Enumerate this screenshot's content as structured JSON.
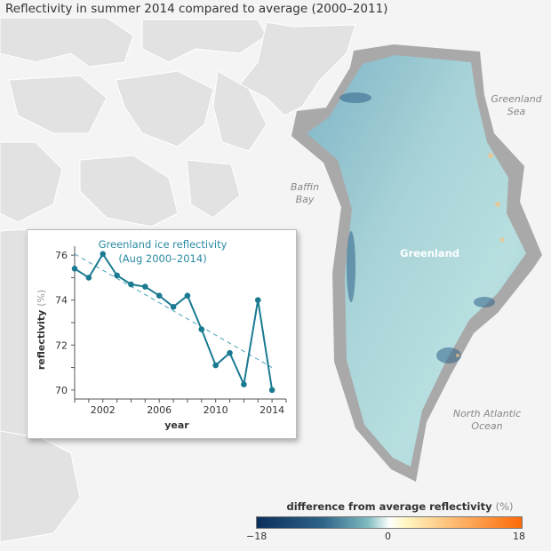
{
  "title": "Reflectivity in summer 2014 compared to average (2000–2011)",
  "map_labels": {
    "baffin_bay": [
      "Baffin",
      "Bay"
    ],
    "greenland_sea": [
      "Greenland",
      "Sea"
    ],
    "greenland": "Greenland",
    "north_atlantic": [
      "North Atlantic",
      "Ocean"
    ]
  },
  "legend": {
    "title": "difference from average reflectivity",
    "unit": "(%)",
    "min_label": "−18",
    "mid_label": "0",
    "max_label": "18",
    "colors": {
      "low": "#0b2f5c",
      "mid": "#ffffff",
      "high": "#fd6a07"
    }
  },
  "chart_data": {
    "type": "line",
    "title": [
      "Greenland ice reflectivity",
      "(Aug 2000–2014)"
    ],
    "xlabel": "year",
    "ylabel": "reflectivity",
    "ylabel_unit": "(%)",
    "x": [
      2000,
      2001,
      2002,
      2003,
      2004,
      2005,
      2006,
      2007,
      2008,
      2009,
      2010,
      2011,
      2012,
      2013,
      2014
    ],
    "series": [
      {
        "values": [
          75.4,
          75.0,
          76.05,
          75.1,
          74.7,
          74.6,
          74.2,
          73.7,
          74.2,
          72.7,
          71.1,
          71.65,
          70.25,
          74.0,
          70.0
        ],
        "color": "#1a7a92"
      }
    ],
    "trend": {
      "x": [
        2000,
        2014
      ],
      "y": [
        76.05,
        71.0
      ],
      "style": "dashed"
    },
    "xlim": [
      2000,
      2015
    ],
    "ylim": [
      69.6,
      76.4
    ],
    "xticks": [
      2002,
      2006,
      2010,
      2014
    ],
    "yticks": [
      70,
      72,
      74,
      76
    ],
    "grid": false
  }
}
